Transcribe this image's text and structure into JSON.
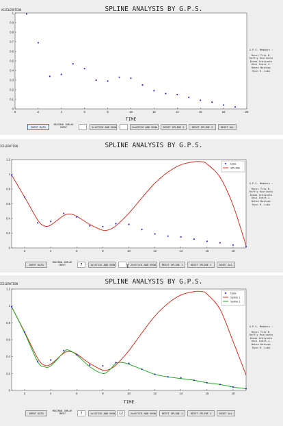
{
  "window_title": "SPLINE ANALYSIS BY G.P.S.",
  "members": {
    "heading": "G.P.S. Members :",
    "names": [
      "Benzi Tito B.",
      "Raffly Rustianto",
      "Dimas Ardiyanto",
      "Dhui Indra J.",
      "Nehan Baihaqi",
      "Ryon R. Lubo"
    ]
  },
  "controls": {
    "input_data": "INPUT DATA",
    "max_label": "MAXIMAN JUMLAH INPUT",
    "spline1_btn": "1stSTICK AND SHOW",
    "spline2_btn": "2ndSTICK AND SHOW",
    "reset1": "RESET SPLINE 1",
    "reset2": "RESET SPLINE 2",
    "reset_all": "RESET ALL"
  },
  "panels": [
    {
      "input1": "",
      "input2": ""
    },
    {
      "input1": "7",
      "input2": ""
    },
    {
      "input1": "7",
      "input2": "12"
    }
  ],
  "chart_data": [
    {
      "type": "scatter",
      "title": "SPLINE ANALYSIS BY G.P.S.",
      "xlabel": "TIME",
      "ylabel": "ACCELERATION",
      "xlim": [
        0,
        20
      ],
      "ylim": [
        0,
        1
      ],
      "xticks": [
        0,
        2,
        4,
        6,
        8,
        10,
        12,
        14,
        16,
        18,
        20
      ],
      "yticks": [
        0,
        0.1,
        0.2,
        0.3,
        0.4,
        0.5,
        0.6,
        0.7,
        0.8,
        0.9,
        1
      ],
      "grid": false,
      "series": [
        {
          "marker": "dot",
          "color": "#3030e0",
          "x": [
            1,
            2,
            3,
            4,
            5,
            6,
            7,
            8,
            9,
            10,
            11,
            12,
            13,
            14,
            15,
            16,
            17,
            18,
            19
          ],
          "y": [
            0.99,
            0.69,
            0.34,
            0.36,
            0.47,
            0.42,
            0.3,
            0.29,
            0.33,
            0.32,
            0.25,
            0.19,
            0.16,
            0.15,
            0.12,
            0.09,
            0.07,
            0.04,
            0.02
          ]
        }
      ]
    },
    {
      "type": "line",
      "title": "SPLINE ANALYSIS BY G.P.S.",
      "xlabel": "TIME",
      "ylabel": "ACCELERATION",
      "xlim": [
        1,
        19
      ],
      "ylim": [
        0,
        1.2
      ],
      "xticks": [
        2,
        4,
        6,
        8,
        10,
        12,
        14,
        16,
        18
      ],
      "yticks": [
        0,
        0.2,
        0.4,
        0.6,
        0.8,
        1,
        1.2
      ],
      "grid": false,
      "legend": "top-right",
      "series": [
        {
          "name": "Data",
          "kind": "scatter",
          "color": "#3030e0",
          "x": [
            1,
            2,
            3,
            4,
            5,
            6,
            7,
            8,
            9,
            10,
            11,
            12,
            13,
            14,
            15,
            16,
            17,
            18,
            19
          ],
          "y": [
            0.99,
            0.69,
            0.34,
            0.36,
            0.47,
            0.42,
            0.3,
            0.29,
            0.33,
            0.32,
            0.25,
            0.19,
            0.16,
            0.15,
            0.12,
            0.09,
            0.07,
            0.04,
            0.02
          ]
        },
        {
          "name": "SPLINE",
          "kind": "line",
          "color": "#cc3322",
          "x": [
            1,
            2,
            3,
            3.5,
            4,
            5,
            5.5,
            6,
            7,
            8,
            8.5,
            9,
            10,
            11,
            12,
            13,
            14,
            15,
            15.6,
            16,
            17,
            18,
            19
          ],
          "y": [
            0.99,
            0.69,
            0.38,
            0.3,
            0.31,
            0.44,
            0.46,
            0.43,
            0.32,
            0.24,
            0.25,
            0.3,
            0.47,
            0.68,
            0.88,
            1.03,
            1.13,
            1.17,
            1.17,
            1.14,
            0.96,
            0.58,
            0.03
          ]
        }
      ]
    },
    {
      "type": "line",
      "title": "SPLINE ANALYSIS BY G.P.S.",
      "xlabel": "TIME",
      "ylabel": "ACCELERATION",
      "xlim": [
        1,
        19
      ],
      "ylim": [
        0,
        1.2
      ],
      "xticks": [
        2,
        4,
        6,
        8,
        10,
        12,
        14,
        16,
        18
      ],
      "yticks": [
        0,
        0.2,
        0.4,
        0.6,
        0.8,
        1,
        1.2
      ],
      "grid": false,
      "legend": "top-right",
      "series": [
        {
          "name": "Data",
          "kind": "scatter",
          "color": "#3030e0",
          "x": [
            1,
            2,
            3,
            4,
            5,
            6,
            7,
            8,
            9,
            10,
            11,
            12,
            13,
            14,
            15,
            16,
            17,
            18,
            19
          ],
          "y": [
            0.99,
            0.69,
            0.34,
            0.36,
            0.47,
            0.42,
            0.3,
            0.29,
            0.33,
            0.32,
            0.25,
            0.19,
            0.16,
            0.15,
            0.12,
            0.09,
            0.07,
            0.04,
            0.02
          ]
        },
        {
          "name": "Spline 1",
          "kind": "line",
          "color": "#cc3322",
          "x": [
            1,
            2,
            3,
            3.5,
            4,
            5,
            5.5,
            6,
            7,
            8,
            8.5,
            9,
            10,
            11,
            12,
            13,
            14,
            15,
            15.6,
            16,
            17,
            18,
            19
          ],
          "y": [
            0.99,
            0.69,
            0.38,
            0.3,
            0.31,
            0.44,
            0.46,
            0.43,
            0.32,
            0.24,
            0.25,
            0.3,
            0.47,
            0.68,
            0.88,
            1.03,
            1.13,
            1.17,
            1.17,
            1.14,
            0.96,
            0.58,
            0.18
          ]
        },
        {
          "name": "Spline 2",
          "kind": "line",
          "color": "#22aa22",
          "x": [
            1,
            2,
            3,
            3.5,
            4,
            5,
            5.3,
            6,
            7,
            8,
            8.5,
            9,
            9.5,
            10,
            11,
            12,
            13,
            14,
            15,
            16,
            17,
            18,
            19
          ],
          "y": [
            0.99,
            0.68,
            0.34,
            0.28,
            0.29,
            0.45,
            0.48,
            0.42,
            0.28,
            0.2,
            0.24,
            0.32,
            0.33,
            0.31,
            0.25,
            0.19,
            0.16,
            0.14,
            0.12,
            0.09,
            0.07,
            0.04,
            0.02
          ]
        }
      ]
    }
  ]
}
